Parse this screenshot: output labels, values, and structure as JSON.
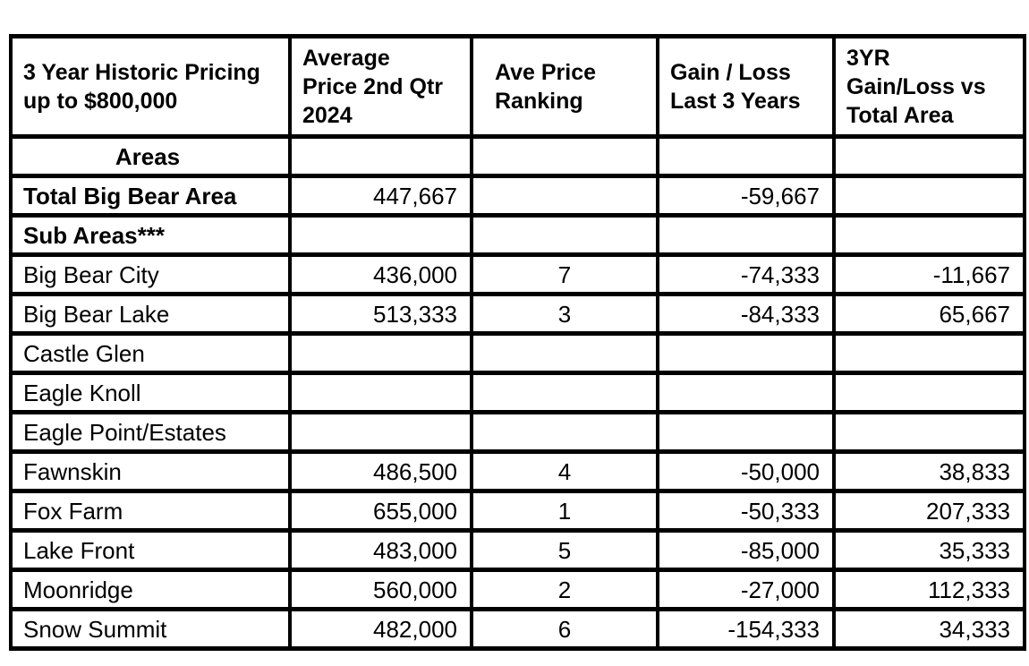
{
  "table": {
    "headers": [
      "3 Year Historic Pricing\nup to $800,000",
      "Average\nPrice 2nd Qtr\n2024",
      "Ave Price\nRanking",
      "Gain / Loss\nLast 3 Years",
      "3YR\nGain/Loss vs\nTotal Area"
    ],
    "rows": [
      {
        "label": "Areas",
        "bold": true,
        "center": true,
        "cells": [
          "",
          "",
          "",
          ""
        ]
      },
      {
        "label": "Total Big Bear Area",
        "bold": true,
        "center": false,
        "cells": [
          "447,667",
          "",
          "-59,667",
          ""
        ]
      },
      {
        "label": "Sub Areas***",
        "bold": true,
        "center": false,
        "cells": [
          "",
          "",
          "",
          ""
        ]
      },
      {
        "label": "Big Bear City",
        "bold": false,
        "center": false,
        "cells": [
          "436,000",
          "7",
          "-74,333",
          "-11,667"
        ]
      },
      {
        "label": "Big Bear Lake",
        "bold": false,
        "center": false,
        "cells": [
          "513,333",
          "3",
          "-84,333",
          "65,667"
        ]
      },
      {
        "label": "Castle Glen",
        "bold": false,
        "center": false,
        "cells": [
          "",
          "",
          "",
          ""
        ]
      },
      {
        "label": "Eagle Knoll",
        "bold": false,
        "center": false,
        "cells": [
          "",
          "",
          "",
          ""
        ]
      },
      {
        "label": "Eagle Point/Estates",
        "bold": false,
        "center": false,
        "cells": [
          "",
          "",
          "",
          ""
        ]
      },
      {
        "label": "Fawnskin",
        "bold": false,
        "center": false,
        "cells": [
          "486,500",
          "4",
          "-50,000",
          "38,833"
        ]
      },
      {
        "label": "Fox Farm",
        "bold": false,
        "center": false,
        "cells": [
          "655,000",
          "1",
          "-50,333",
          "207,333"
        ]
      },
      {
        "label": "Lake Front",
        "bold": false,
        "center": false,
        "cells": [
          "483,000",
          "5",
          "-85,000",
          "35,333"
        ]
      },
      {
        "label": "Moonridge",
        "bold": false,
        "center": false,
        "cells": [
          "560,000",
          "2",
          "-27,000",
          "112,333"
        ]
      },
      {
        "label": "Snow Summit",
        "bold": false,
        "center": false,
        "cells": [
          "482,000",
          "6",
          "-154,333",
          "34,333"
        ]
      }
    ]
  },
  "chart_data": {
    "type": "table",
    "title": "3 Year Historic Pricing up to $800,000",
    "columns": [
      "Area",
      "Average Price 2nd Qtr 2024",
      "Ave Price Ranking",
      "Gain / Loss Last 3 Years",
      "3YR Gain/Loss vs Total Area"
    ],
    "sections": [
      "Areas",
      "Sub Areas***"
    ],
    "rows": [
      {
        "area": "Total Big Bear Area",
        "avg_price_q2_2024": 447667,
        "rank": null,
        "gain_loss_3yr": -59667,
        "vs_total_area": null
      },
      {
        "area": "Big Bear City",
        "avg_price_q2_2024": 436000,
        "rank": 7,
        "gain_loss_3yr": -74333,
        "vs_total_area": -11667
      },
      {
        "area": "Big Bear Lake",
        "avg_price_q2_2024": 513333,
        "rank": 3,
        "gain_loss_3yr": -84333,
        "vs_total_area": 65667
      },
      {
        "area": "Castle Glen",
        "avg_price_q2_2024": null,
        "rank": null,
        "gain_loss_3yr": null,
        "vs_total_area": null
      },
      {
        "area": "Eagle Knoll",
        "avg_price_q2_2024": null,
        "rank": null,
        "gain_loss_3yr": null,
        "vs_total_area": null
      },
      {
        "area": "Eagle Point/Estates",
        "avg_price_q2_2024": null,
        "rank": null,
        "gain_loss_3yr": null,
        "vs_total_area": null
      },
      {
        "area": "Fawnskin",
        "avg_price_q2_2024": 486500,
        "rank": 4,
        "gain_loss_3yr": -50000,
        "vs_total_area": 38833
      },
      {
        "area": "Fox Farm",
        "avg_price_q2_2024": 655000,
        "rank": 1,
        "gain_loss_3yr": -50333,
        "vs_total_area": 207333
      },
      {
        "area": "Lake Front",
        "avg_price_q2_2024": 483000,
        "rank": 5,
        "gain_loss_3yr": -85000,
        "vs_total_area": 35333
      },
      {
        "area": "Moonridge",
        "avg_price_q2_2024": 560000,
        "rank": 2,
        "gain_loss_3yr": -27000,
        "vs_total_area": 112333
      },
      {
        "area": "Snow Summit",
        "avg_price_q2_2024": 482000,
        "rank": 6,
        "gain_loss_3yr": -154333,
        "vs_total_area": 34333
      }
    ],
    "colors": {
      "border": "#000000",
      "background": "#ffffff",
      "text": "#000000"
    }
  }
}
